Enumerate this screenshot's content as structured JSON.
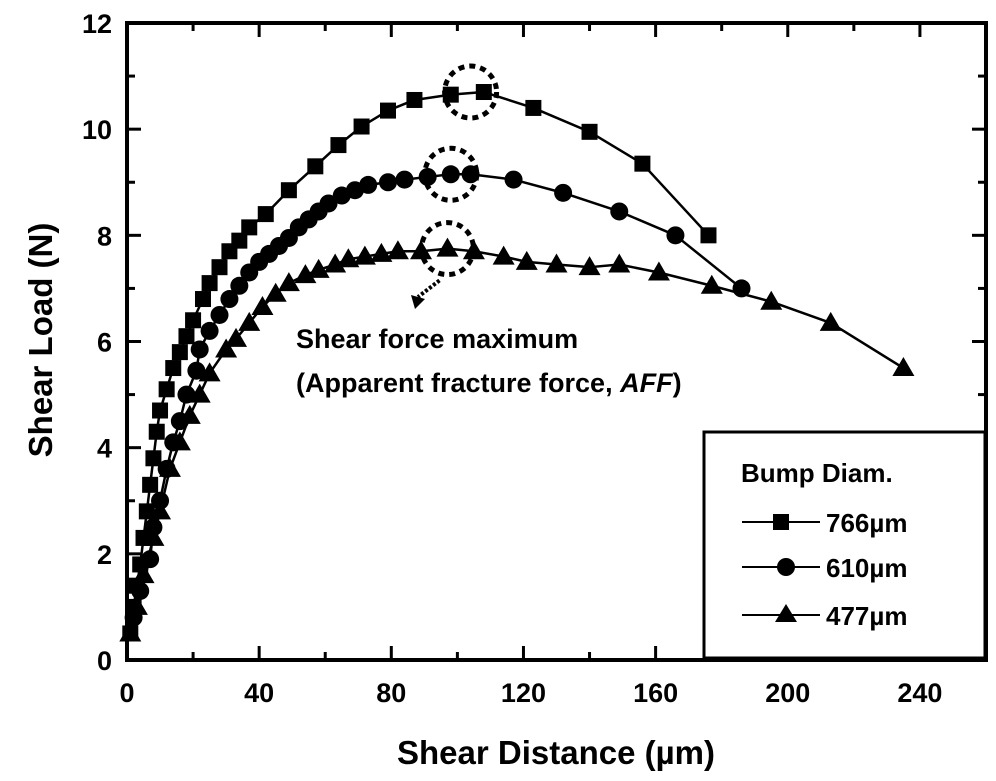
{
  "chart_data": {
    "type": "line",
    "title": "",
    "xlabel": "Shear Distance (µm)",
    "ylabel": "Shear Load (N)",
    "xlim": [
      0,
      260
    ],
    "ylim": [
      0,
      12
    ],
    "xticks": [
      0,
      40,
      80,
      120,
      160,
      200,
      240
    ],
    "yticks": [
      0,
      2,
      4,
      6,
      8,
      10,
      12
    ],
    "grid": false,
    "legend": {
      "title": "Bump Diam.",
      "position": "lower right",
      "entries": [
        "766µm",
        "610µm",
        "477µm"
      ]
    },
    "series": [
      {
        "name": "766µm",
        "marker": "square",
        "x": [
          1,
          2,
          3,
          4,
          5,
          6,
          7,
          8,
          9,
          10,
          12,
          14,
          16,
          18,
          20,
          23,
          25,
          28,
          31,
          34,
          37,
          42,
          49,
          57,
          64,
          71,
          79,
          87,
          98,
          108,
          123,
          140,
          156,
          176
        ],
        "y": [
          0.5,
          1.0,
          1.4,
          1.8,
          2.3,
          2.8,
          3.3,
          3.8,
          4.3,
          4.7,
          5.1,
          5.5,
          5.8,
          6.1,
          6.4,
          6.8,
          7.1,
          7.4,
          7.7,
          7.9,
          8.15,
          8.4,
          8.85,
          9.3,
          9.7,
          10.05,
          10.35,
          10.55,
          10.65,
          10.7,
          10.4,
          9.95,
          9.35,
          8.0
        ]
      },
      {
        "name": "610µm",
        "marker": "circle",
        "x": [
          2,
          4,
          7,
          8,
          10,
          12,
          14,
          16,
          18,
          21,
          22,
          25,
          28,
          31,
          34,
          37,
          40,
          43,
          46,
          49,
          52,
          55,
          58,
          61,
          65,
          69,
          73,
          79,
          84,
          91,
          98,
          104,
          117,
          132,
          149,
          166,
          186
        ],
        "y": [
          0.8,
          1.3,
          1.9,
          2.5,
          3.0,
          3.6,
          4.1,
          4.5,
          5.0,
          5.45,
          5.85,
          6.2,
          6.5,
          6.8,
          7.05,
          7.3,
          7.5,
          7.65,
          7.8,
          7.95,
          8.15,
          8.3,
          8.45,
          8.6,
          8.75,
          8.85,
          8.95,
          9.0,
          9.05,
          9.1,
          9.15,
          9.15,
          9.05,
          8.8,
          8.45,
          8.0,
          7.0
        ]
      },
      {
        "name": "477µm",
        "marker": "triangle",
        "x": [
          1,
          3,
          5,
          8,
          10,
          13,
          16,
          19,
          22,
          25,
          30,
          33,
          37,
          41,
          45,
          49,
          54,
          58,
          63,
          67,
          72,
          77,
          82,
          89,
          97,
          105,
          114,
          121,
          130,
          140,
          149,
          161,
          177,
          195,
          213,
          235
        ],
        "y": [
          0.5,
          1.0,
          1.6,
          2.3,
          2.8,
          3.6,
          4.1,
          4.6,
          5.0,
          5.4,
          5.85,
          6.05,
          6.35,
          6.65,
          6.9,
          7.1,
          7.25,
          7.35,
          7.45,
          7.55,
          7.6,
          7.65,
          7.7,
          7.7,
          7.75,
          7.7,
          7.6,
          7.5,
          7.45,
          7.4,
          7.45,
          7.3,
          7.05,
          6.75,
          6.35,
          5.5
        ]
      }
    ],
    "annotations": [
      {
        "text_line1": "Shear force maximum",
        "text_line2_prefix": "(Apparent fracture force, ",
        "text_line2_italic": "AFF",
        "text_line2_suffix": ")",
        "arrow_from": [
          97,
          7.0
        ],
        "arrow_to": [
          87,
          5.8
        ]
      },
      {
        "type": "dashed-circle",
        "center": [
          104,
          10.7
        ]
      },
      {
        "type": "dashed-circle",
        "center": [
          98,
          9.15
        ]
      },
      {
        "type": "dashed-circle",
        "center": [
          97,
          7.75
        ]
      }
    ]
  },
  "axes": {
    "x_title": "Shear Distance (µm)",
    "y_title": "Shear Load (N)"
  },
  "annotation": {
    "line1": "Shear force maximum",
    "line2_prefix": "(Apparent fracture force, ",
    "line2_italic": "AFF",
    "line2_suffix": ")"
  },
  "legend": {
    "title": "Bump Diam.",
    "entries": [
      "766µm",
      "610µm",
      "477µm"
    ]
  },
  "colors": {
    "ink": "#000000",
    "background": "#ffffff"
  }
}
